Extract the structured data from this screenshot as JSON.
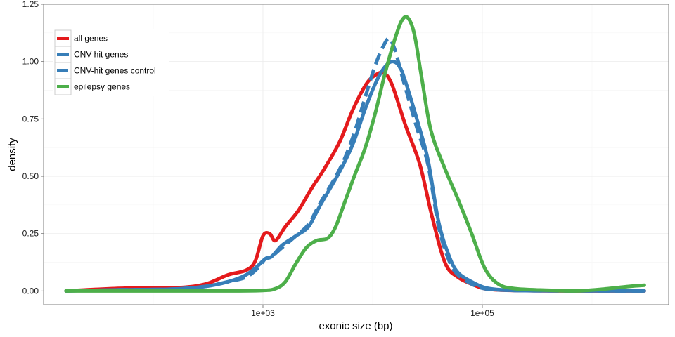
{
  "chart_data": {
    "type": "line",
    "xlabel": "exonic size (bp)",
    "ylabel": "density",
    "x_scale": "log10",
    "xlim": [
      10,
      5000000
    ],
    "ylim": [
      -0.06,
      1.25
    ],
    "x_ticks": [
      1000,
      100000
    ],
    "x_tick_labels": [
      "1e+03",
      "1e+05"
    ],
    "y_ticks": [
      0,
      0.25,
      0.5,
      0.75,
      1,
      1.25
    ],
    "y_tick_labels": [
      "0.00",
      "0.25",
      "0.50",
      "0.75",
      "1.00",
      "1.25"
    ],
    "grid": true,
    "legend_position": "top-left",
    "series": [
      {
        "name": "all genes",
        "color": "#e41a1c",
        "dash": "solid",
        "points": [
          [
            16,
            0
          ],
          [
            30,
            0.007
          ],
          [
            55,
            0.012
          ],
          [
            100,
            0.012
          ],
          [
            180,
            0.015
          ],
          [
            300,
            0.03
          ],
          [
            480,
            0.07
          ],
          [
            700,
            0.09
          ],
          [
            850,
            0.13
          ],
          [
            1000,
            0.24
          ],
          [
            1150,
            0.25
          ],
          [
            1300,
            0.22
          ],
          [
            1600,
            0.28
          ],
          [
            2100,
            0.35
          ],
          [
            2800,
            0.45
          ],
          [
            3600,
            0.53
          ],
          [
            5000,
            0.65
          ],
          [
            6600,
            0.79
          ],
          [
            8700,
            0.9
          ],
          [
            10500,
            0.94
          ],
          [
            12600,
            0.95
          ],
          [
            15000,
            0.9
          ],
          [
            20000,
            0.72
          ],
          [
            27000,
            0.55
          ],
          [
            35000,
            0.32
          ],
          [
            46000,
            0.12
          ],
          [
            60000,
            0.06
          ],
          [
            80000,
            0.03
          ],
          [
            105000,
            0.01
          ],
          [
            160000,
            0.003
          ],
          [
            300000,
            0.001
          ],
          [
            600000,
            0
          ],
          [
            3000000,
            0
          ]
        ]
      },
      {
        "name": "CNV-hit genes",
        "color": "#377eb8",
        "dash": "solid",
        "points": [
          [
            16,
            0
          ],
          [
            50,
            0.005
          ],
          [
            150,
            0.008
          ],
          [
            300,
            0.02
          ],
          [
            480,
            0.04
          ],
          [
            700,
            0.07
          ],
          [
            900,
            0.11
          ],
          [
            1050,
            0.14
          ],
          [
            1200,
            0.15
          ],
          [
            1500,
            0.2
          ],
          [
            2000,
            0.24
          ],
          [
            2600,
            0.28
          ],
          [
            3300,
            0.37
          ],
          [
            5000,
            0.52
          ],
          [
            6600,
            0.64
          ],
          [
            8500,
            0.79
          ],
          [
            10500,
            0.9
          ],
          [
            12600,
            0.97
          ],
          [
            15000,
            1.0
          ],
          [
            17500,
            0.98
          ],
          [
            20000,
            0.91
          ],
          [
            26000,
            0.73
          ],
          [
            32000,
            0.57
          ],
          [
            40000,
            0.3
          ],
          [
            50000,
            0.15
          ],
          [
            60000,
            0.08
          ],
          [
            80000,
            0.04
          ],
          [
            105000,
            0.015
          ],
          [
            150000,
            0.005
          ],
          [
            300000,
            0.001
          ],
          [
            3000000,
            0
          ]
        ]
      },
      {
        "name": "CNV-hit genes control",
        "color": "#377eb8",
        "dash": "dashed",
        "points": [
          [
            16,
            0
          ],
          [
            50,
            0.005
          ],
          [
            150,
            0.008
          ],
          [
            300,
            0.02
          ],
          [
            480,
            0.04
          ],
          [
            700,
            0.06
          ],
          [
            900,
            0.1
          ],
          [
            1050,
            0.14
          ],
          [
            1200,
            0.15
          ],
          [
            1500,
            0.19
          ],
          [
            2000,
            0.24
          ],
          [
            2600,
            0.29
          ],
          [
            3300,
            0.38
          ],
          [
            5000,
            0.53
          ],
          [
            6600,
            0.67
          ],
          [
            8500,
            0.84
          ],
          [
            10500,
            0.98
          ],
          [
            12600,
            1.07
          ],
          [
            14200,
            1.1
          ],
          [
            16000,
            1.05
          ],
          [
            19000,
            0.92
          ],
          [
            25000,
            0.72
          ],
          [
            32000,
            0.55
          ],
          [
            40000,
            0.28
          ],
          [
            50000,
            0.13
          ],
          [
            60000,
            0.07
          ],
          [
            80000,
            0.03
          ],
          [
            105000,
            0.01
          ],
          [
            150000,
            0.004
          ],
          [
            300000,
            0.001
          ],
          [
            3000000,
            0
          ]
        ]
      },
      {
        "name": "epilepsy genes",
        "color": "#4daf4a",
        "dash": "solid",
        "points": [
          [
            16,
            0
          ],
          [
            100,
            0
          ],
          [
            500,
            0
          ],
          [
            1000,
            0.002
          ],
          [
            1300,
            0.01
          ],
          [
            1600,
            0.04
          ],
          [
            2000,
            0.12
          ],
          [
            2500,
            0.19
          ],
          [
            3100,
            0.22
          ],
          [
            3900,
            0.23
          ],
          [
            4600,
            0.28
          ],
          [
            5500,
            0.38
          ],
          [
            6800,
            0.5
          ],
          [
            8500,
            0.62
          ],
          [
            10500,
            0.77
          ],
          [
            13000,
            0.95
          ],
          [
            16000,
            1.1
          ],
          [
            18500,
            1.18
          ],
          [
            21000,
            1.19
          ],
          [
            24000,
            1.12
          ],
          [
            28000,
            0.93
          ],
          [
            34000,
            0.7
          ],
          [
            45000,
            0.54
          ],
          [
            60000,
            0.4
          ],
          [
            80000,
            0.25
          ],
          [
            105000,
            0.1
          ],
          [
            140000,
            0.03
          ],
          [
            200000,
            0.01
          ],
          [
            400000,
            0.003
          ],
          [
            700000,
            0
          ],
          [
            1200000,
            0.007
          ],
          [
            2200000,
            0.02
          ],
          [
            3000000,
            0.025
          ]
        ]
      }
    ]
  }
}
